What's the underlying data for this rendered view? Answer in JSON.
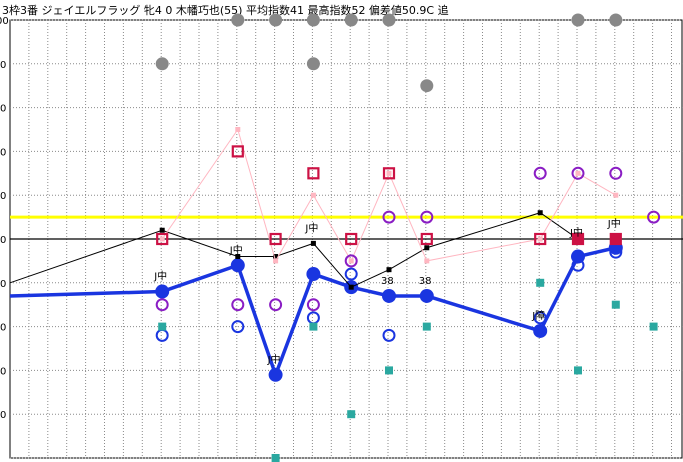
{
  "title": "3枠3番 ジェイエルフラッグ 牝4 0 木幡巧也(55) 平均指数41 最高指数52 偏差値50.9C 追",
  "chart_data": {
    "type": "scatter",
    "ylim": [
      0,
      100
    ],
    "y_ticks": [
      "00",
      "0",
      "0",
      "0",
      "0",
      "0",
      "0",
      "0",
      "0",
      "0"
    ],
    "grid": true,
    "x": [
      0,
      1,
      2,
      3,
      4,
      5,
      6,
      7,
      8,
      9,
      10,
      11,
      12,
      13,
      14,
      15,
      16,
      17
    ],
    "reference_lines": [
      {
        "y": 55,
        "color": "#ffff00"
      },
      {
        "y": 50,
        "color": "#000000"
      }
    ],
    "series": [
      {
        "style": "thick-line-filled-circle",
        "color": "#1a35e0",
        "points": [
          [
            0,
            37
          ],
          [
            4,
            38
          ],
          [
            6,
            44
          ],
          [
            7,
            19
          ],
          [
            8,
            42
          ],
          [
            9,
            39
          ],
          [
            10,
            37
          ],
          [
            11,
            37
          ],
          [
            14,
            29
          ],
          [
            15,
            46
          ],
          [
            16,
            48
          ]
        ]
      },
      {
        "style": "thin-line-square",
        "color": "#000000",
        "points": [
          [
            0,
            40
          ],
          [
            4,
            52
          ],
          [
            6,
            46
          ],
          [
            7,
            46
          ],
          [
            8,
            49
          ],
          [
            9,
            39
          ],
          [
            10,
            43
          ],
          [
            11,
            48
          ],
          [
            14,
            56
          ],
          [
            15,
            50
          ],
          [
            16,
            50
          ]
        ]
      },
      {
        "style": "thin-line-square",
        "color": "#ffb6c1",
        "points": [
          [
            4,
            50
          ],
          [
            6,
            75
          ],
          [
            7,
            45
          ],
          [
            8,
            60
          ],
          [
            9,
            45
          ],
          [
            10,
            65
          ],
          [
            11,
            45
          ],
          [
            14,
            50
          ],
          [
            15,
            65
          ],
          [
            16,
            60
          ]
        ]
      },
      {
        "style": "open-square",
        "color": "#cc1144",
        "points": [
          [
            4,
            50
          ],
          [
            6,
            70
          ],
          [
            7,
            50
          ],
          [
            8,
            65
          ],
          [
            9,
            50
          ],
          [
            10,
            65
          ],
          [
            11,
            50
          ],
          [
            14,
            50
          ],
          [
            15,
            50
          ],
          [
            16,
            50
          ]
        ]
      },
      {
        "style": "filled-square",
        "color": "#cc1144",
        "points": [
          [
            15,
            50
          ],
          [
            16,
            50
          ]
        ]
      },
      {
        "style": "open-circle",
        "color": "#8a1dc4",
        "points": [
          [
            4,
            35
          ],
          [
            6,
            35
          ],
          [
            7,
            35
          ],
          [
            8,
            35
          ],
          [
            9,
            45
          ],
          [
            10,
            55
          ],
          [
            11,
            55
          ],
          [
            14,
            65
          ],
          [
            15,
            65
          ],
          [
            16,
            65
          ],
          [
            17,
            55
          ]
        ]
      },
      {
        "style": "open-circle",
        "color": "#1a35e0",
        "points": [
          [
            4,
            28
          ],
          [
            6,
            30
          ],
          [
            8,
            32
          ],
          [
            9,
            42
          ],
          [
            10,
            28
          ],
          [
            14,
            32
          ],
          [
            15,
            44
          ],
          [
            16,
            47
          ]
        ]
      },
      {
        "style": "filled-square",
        "color": "#2aa8a0",
        "points": [
          [
            4,
            30
          ],
          [
            7,
            0
          ],
          [
            8,
            30
          ],
          [
            9,
            10
          ],
          [
            10,
            20
          ],
          [
            11,
            30
          ],
          [
            14,
            40
          ],
          [
            15,
            20
          ],
          [
            16,
            35
          ],
          [
            17,
            30
          ]
        ]
      },
      {
        "style": "filled-circle",
        "color": "#888888",
        "points": [
          [
            4,
            90
          ],
          [
            6,
            100
          ],
          [
            7,
            100
          ],
          [
            8,
            100
          ],
          [
            8,
            90
          ],
          [
            9,
            100
          ],
          [
            10,
            100
          ],
          [
            11,
            85
          ],
          [
            15,
            100
          ],
          [
            16,
            100
          ]
        ]
      }
    ],
    "point_labels": [
      {
        "x": 4,
        "y": 38,
        "text": "J中"
      },
      {
        "x": 6,
        "y": 44,
        "text": "J中"
      },
      {
        "x": 7,
        "y": 19,
        "text": "J中"
      },
      {
        "x": 8,
        "y": 49,
        "text": "J中"
      },
      {
        "x": 10,
        "y": 37,
        "text": "38"
      },
      {
        "x": 11,
        "y": 37,
        "text": "38"
      },
      {
        "x": 14,
        "y": 29,
        "text": "J障"
      },
      {
        "x": 15,
        "y": 48,
        "text": "J中"
      },
      {
        "x": 16,
        "y": 50,
        "text": "J中"
      }
    ]
  }
}
